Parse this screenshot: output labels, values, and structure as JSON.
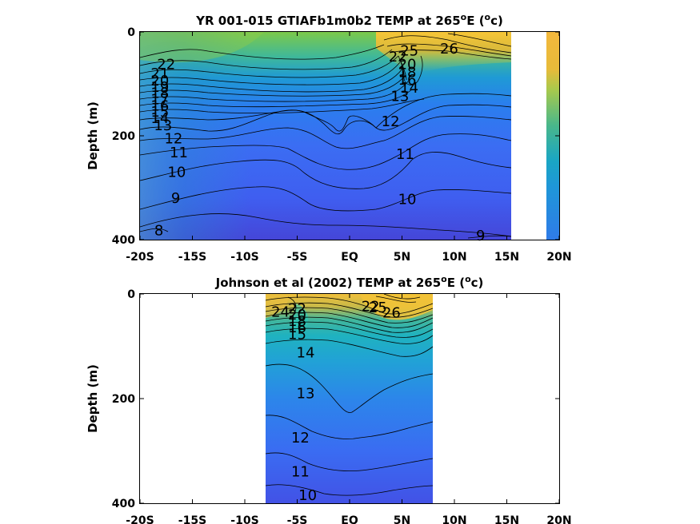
{
  "chart_data": [
    {
      "type": "heatmap",
      "title_main": "YR 001-015 GTIAFb1m0b2 TEMP at 265",
      "title_sup": "o",
      "title_tail": "E (",
      "title_unit_sup": "o",
      "title_unit": "c)",
      "ylabel": "Depth (m)",
      "xlabel": "",
      "xlim": [
        -20,
        20
      ],
      "ylim": [
        400,
        0
      ],
      "y_reversed": true,
      "xticks": [
        "-20S",
        "-15S",
        "-10S",
        "-5S",
        "EQ",
        "5N",
        "10N",
        "15N",
        "20N"
      ],
      "yticks": [
        "0",
        "200",
        "400"
      ],
      "data_extent_lat": [
        -20,
        15
      ],
      "extra_strip_lat": [
        18.8,
        20
      ],
      "colormap": "parula",
      "grid": false,
      "contour_levels": [
        8,
        9,
        10,
        11,
        12,
        13,
        14,
        15,
        16,
        17,
        18,
        19,
        20,
        21,
        22,
        23,
        24,
        25,
        26
      ],
      "labeled_contours": [
        {
          "value": "22",
          "lat": -17.5,
          "depth": 62
        },
        {
          "value": "21",
          "lat": -18.1,
          "depth": 80
        },
        {
          "value": "20",
          "lat": -18.1,
          "depth": 94
        },
        {
          "value": "19",
          "lat": -18.1,
          "depth": 106
        },
        {
          "value": "18",
          "lat": -18.1,
          "depth": 118
        },
        {
          "value": "17",
          "lat": -18.1,
          "depth": 130
        },
        {
          "value": "16",
          "lat": -18.1,
          "depth": 142
        },
        {
          "value": "15",
          "lat": -18.1,
          "depth": 154
        },
        {
          "value": "14",
          "lat": -18.1,
          "depth": 166
        },
        {
          "value": "13",
          "lat": -17.8,
          "depth": 180
        },
        {
          "value": "12",
          "lat": -16.8,
          "depth": 205
        },
        {
          "value": "11",
          "lat": -16.3,
          "depth": 232
        },
        {
          "value": "10",
          "lat": -16.5,
          "depth": 270
        },
        {
          "value": "9",
          "lat": -16.6,
          "depth": 320
        },
        {
          "value": "8",
          "lat": -18.2,
          "depth": 382
        },
        {
          "value": "25",
          "lat": 5.7,
          "depth": 36
        },
        {
          "value": "26",
          "lat": 9.5,
          "depth": 32
        },
        {
          "value": "22",
          "lat": 4.6,
          "depth": 48
        },
        {
          "value": "20",
          "lat": 5.5,
          "depth": 62
        },
        {
          "value": "18",
          "lat": 5.5,
          "depth": 78
        },
        {
          "value": "16",
          "lat": 5.5,
          "depth": 92
        },
        {
          "value": "14",
          "lat": 5.7,
          "depth": 108
        },
        {
          "value": "13",
          "lat": 4.8,
          "depth": 124
        },
        {
          "value": "12",
          "lat": 3.9,
          "depth": 172
        },
        {
          "value": "11",
          "lat": 5.3,
          "depth": 235
        },
        {
          "value": "10",
          "lat": 5.5,
          "depth": 322
        },
        {
          "value": "9",
          "lat": 12.5,
          "depth": 392
        }
      ]
    },
    {
      "type": "heatmap",
      "title_main": "Johnson et al (2002) TEMP at 265",
      "title_sup": "o",
      "title_tail": "E (",
      "title_unit_sup": "o",
      "title_unit": "c)",
      "ylabel": "Depth (m)",
      "xlabel": "",
      "xlim": [
        -20,
        20
      ],
      "ylim": [
        400,
        0
      ],
      "y_reversed": true,
      "xticks": [
        "-20S",
        "-15S",
        "-10S",
        "-5S",
        "EQ",
        "5N",
        "10N",
        "15N",
        "20N"
      ],
      "yticks": [
        "0",
        "200",
        "400"
      ],
      "data_extent_lat": [
        -8,
        8
      ],
      "colormap": "parula",
      "grid": false,
      "contour_levels": [
        10,
        11,
        12,
        13,
        14,
        15,
        16,
        17,
        18,
        19,
        20,
        21,
        22,
        23,
        24,
        25,
        26,
        27
      ],
      "labeled_contours": [
        {
          "value": "24",
          "lat": -6.6,
          "depth": 34
        },
        {
          "value": "22",
          "lat": -5.0,
          "depth": 28
        },
        {
          "value": "20",
          "lat": -5.0,
          "depth": 40
        },
        {
          "value": "18",
          "lat": -5.0,
          "depth": 52
        },
        {
          "value": "16",
          "lat": -5.0,
          "depth": 64
        },
        {
          "value": "15",
          "lat": -5.0,
          "depth": 77
        },
        {
          "value": "14",
          "lat": -4.2,
          "depth": 112
        },
        {
          "value": "13",
          "lat": -4.2,
          "depth": 190
        },
        {
          "value": "12",
          "lat": -4.7,
          "depth": 275
        },
        {
          "value": "11",
          "lat": -4.7,
          "depth": 340
        },
        {
          "value": "10",
          "lat": -4.0,
          "depth": 385
        },
        {
          "value": "22",
          "lat": 2.0,
          "depth": 24
        },
        {
          "value": "25",
          "lat": 2.7,
          "depth": 26
        },
        {
          "value": "26",
          "lat": 4.0,
          "depth": 36
        }
      ]
    }
  ]
}
